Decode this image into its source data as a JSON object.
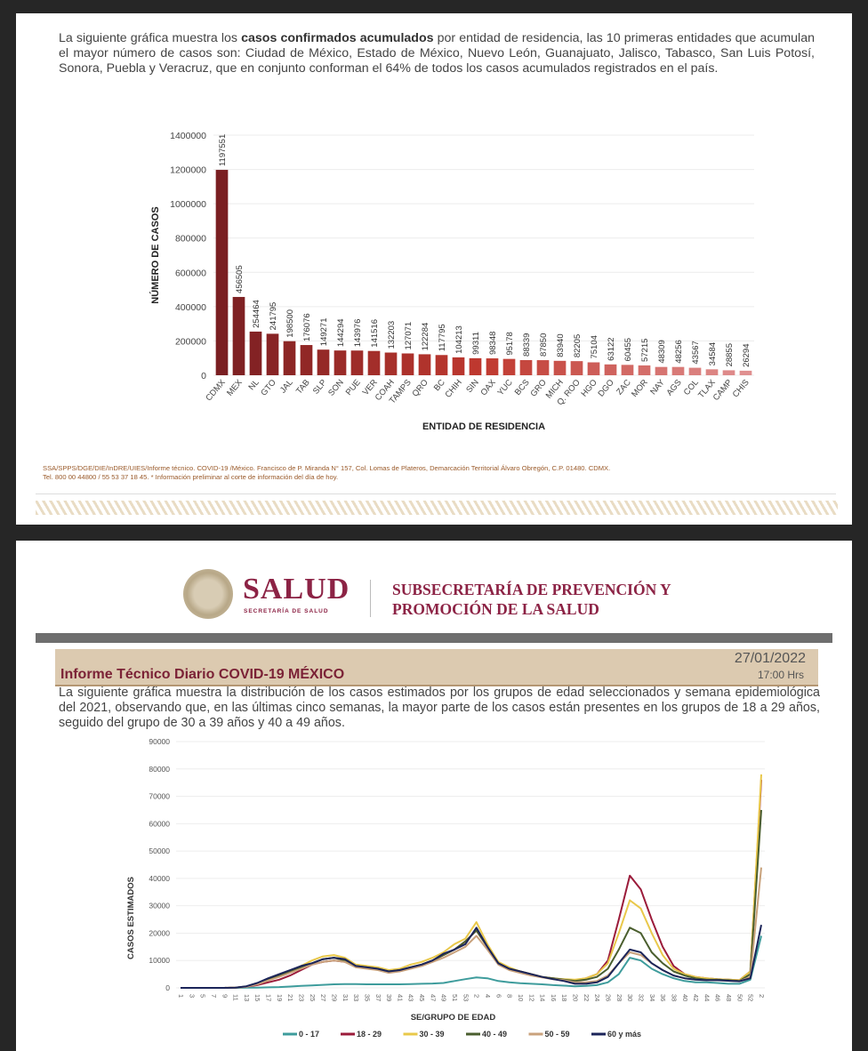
{
  "panel1": {
    "paragraph_before": "La siguiente gráfica muestra los ",
    "paragraph_bold": "casos confirmados acumulados",
    "paragraph_after": " por entidad de residencia, las 10 primeras entidades que acumulan el mayor número de casos son: Ciudad de México, Estado de México, Nuevo León, Guanajuato, Jalisco, Tabasco, San Luis Potosí, Sonora, Puebla y Veracruz, que en conjunto conforman el 64% de todos los casos acumulados registrados en el país.",
    "footer_line1": "SSA/SPPS/DGE/DIE/InDRE/UIES/Informe técnico. COVID-19 /México. Francisco de P. Miranda N° 157, Col. Lomas de Plateros, Demarcación Territorial Álvaro Obregón, C.P. 01480. CDMX.",
    "footer_line2": "Tel. 800 00 44800 / 55 53 37 18 45. * Información preliminar al corte de información del día de hoy."
  },
  "panel2": {
    "brand": "SALUD",
    "brand_sub": "SECRETARÍA DE SALUD",
    "subsecretaria_line1": "SUBSECRETARÍA DE PREVENCIÓN Y",
    "subsecretaria_line2": "PROMOCIÓN DE LA SALUD",
    "report_title": "Informe Técnico Diario COVID-19 MÉXICO",
    "date": "27/01/2022",
    "time": "17:00 Hrs",
    "paragraph": "La siguiente gráfica muestra la distribución de los casos estimados por los grupos de edad seleccionados y semana epidemiológica del 2021, observando que, en las últimas cinco semanas, la mayor parte de los casos están presentes en los grupos de 18 a 29 años, seguido del grupo de 30 a 39 años y 40 a 49 años."
  },
  "chart_data": [
    {
      "type": "bar",
      "xlabel": "ENTIDAD DE RESIDENCIA",
      "ylabel": "NÚMERO DE CASOS",
      "ylim": [
        0,
        1400000
      ],
      "yticks": [
        0,
        200000,
        400000,
        600000,
        800000,
        1000000,
        1200000,
        1400000
      ],
      "grid": true,
      "colors": {
        "dark": "#7a1f22",
        "mid": "#c0392f",
        "light": "#e09090"
      },
      "categories": [
        "CDMX",
        "MEX",
        "NL",
        "GTO",
        "JAL",
        "TAB",
        "SLP",
        "SON",
        "PUE",
        "VER",
        "COAH",
        "TAMPS",
        "QRO",
        "BC",
        "CHIH",
        "SIN",
        "OAX",
        "YUC",
        "BCS",
        "GRO",
        "MICH",
        "Q. ROO",
        "HGO",
        "DGO",
        "ZAC",
        "MOR",
        "NAY",
        "AGS",
        "COL",
        "TLAX",
        "CAMP",
        "CHIS"
      ],
      "values": [
        1197551,
        456505,
        254464,
        241795,
        198500,
        176076,
        149271,
        144294,
        143976,
        141516,
        132203,
        127071,
        122284,
        117795,
        104213,
        99311,
        98348,
        95178,
        88339,
        87850,
        83940,
        82205,
        75104,
        63122,
        60455,
        57215,
        48309,
        48256,
        43567,
        34584,
        28855,
        26294
      ]
    },
    {
      "type": "line",
      "xlabel": "SE/GRUPO DE EDAD",
      "ylabel": "CASOS ESTIMADOS",
      "ylim": [
        0,
        90000
      ],
      "yticks": [
        0,
        10000,
        20000,
        30000,
        40000,
        50000,
        60000,
        70000,
        80000,
        90000
      ],
      "grid": true,
      "legend": "bottom",
      "x": [
        "1",
        "3",
        "5",
        "7",
        "9",
        "11",
        "13",
        "15",
        "17",
        "19",
        "21",
        "23",
        "25",
        "27",
        "29",
        "31",
        "33",
        "35",
        "37",
        "39",
        "41",
        "43",
        "45",
        "47",
        "49",
        "51",
        "53",
        "2",
        "4",
        "6",
        "8",
        "10",
        "12",
        "14",
        "16",
        "18",
        "20",
        "22",
        "24",
        "26",
        "28",
        "30",
        "32",
        "34",
        "36",
        "38",
        "40",
        "42",
        "44",
        "46",
        "48",
        "50",
        "52",
        "2"
      ],
      "series": [
        {
          "name": "0 - 17",
          "color": "#3e9c9c",
          "values": [
            0,
            0,
            0,
            0,
            0,
            0,
            50,
            100,
            200,
            300,
            500,
            700,
            900,
            1100,
            1300,
            1400,
            1400,
            1300,
            1300,
            1300,
            1300,
            1400,
            1500,
            1600,
            1800,
            2500,
            3200,
            3800,
            3500,
            2500,
            2000,
            1700,
            1500,
            1300,
            1000,
            800,
            600,
            700,
            1000,
            2000,
            5000,
            11000,
            10000,
            7000,
            5000,
            3500,
            2500,
            2000,
            2000,
            1800,
            1500,
            1500,
            3000,
            19000
          ]
        },
        {
          "name": "18 - 29",
          "color": "#9b1b3a",
          "values": [
            0,
            0,
            0,
            0,
            0,
            100,
            400,
            1000,
            2000,
            3000,
            4500,
            6500,
            8500,
            9500,
            10000,
            9500,
            8000,
            7500,
            7000,
            6000,
            6500,
            7500,
            8500,
            10000,
            12000,
            14000,
            17000,
            21000,
            15000,
            9000,
            7000,
            6000,
            5000,
            4000,
            3500,
            3000,
            2800,
            3500,
            5000,
            10000,
            25000,
            41000,
            36000,
            25000,
            15000,
            8000,
            5000,
            4000,
            3500,
            3200,
            3000,
            2800,
            6000,
            76000
          ]
        },
        {
          "name": "30 - 39",
          "color": "#e9c84a",
          "values": [
            0,
            0,
            0,
            0,
            0,
            100,
            500,
            1500,
            3000,
            4500,
            6000,
            8000,
            10000,
            11500,
            12000,
            11000,
            8500,
            8000,
            7500,
            6500,
            7000,
            8500,
            9500,
            11000,
            13000,
            16000,
            18000,
            24000,
            16000,
            9500,
            7500,
            6000,
            5000,
            4000,
            3500,
            3200,
            3000,
            3500,
            5000,
            9000,
            20000,
            32000,
            29000,
            20000,
            12000,
            7000,
            5000,
            4000,
            3500,
            3200,
            3000,
            2800,
            6000,
            78000
          ]
        },
        {
          "name": "40 - 49",
          "color": "#4a5e2e",
          "values": [
            0,
            0,
            0,
            0,
            0,
            100,
            500,
            1500,
            3000,
            4500,
            6000,
            7500,
            9000,
            10500,
            11000,
            10000,
            8000,
            7500,
            7000,
            6000,
            6500,
            7500,
            8500,
            10000,
            12000,
            14000,
            17000,
            21000,
            15000,
            9000,
            7000,
            6000,
            5000,
            4000,
            3500,
            3000,
            2500,
            3000,
            4000,
            7000,
            14000,
            22000,
            20000,
            13000,
            9000,
            6000,
            4500,
            3500,
            3000,
            3000,
            2800,
            2500,
            5000,
            65000
          ]
        },
        {
          "name": "50 - 59",
          "color": "#c9a27c",
          "values": [
            0,
            0,
            0,
            0,
            0,
            100,
            400,
            1300,
            2700,
            4000,
            5500,
            7000,
            8500,
            9500,
            10000,
            9500,
            7500,
            7000,
            6500,
            5500,
            6000,
            7000,
            8000,
            9500,
            11000,
            13000,
            15000,
            19000,
            14000,
            8500,
            6500,
            5500,
            4500,
            3800,
            3200,
            2800,
            2000,
            2000,
            2500,
            4500,
            9000,
            13000,
            12000,
            9000,
            6500,
            4500,
            3500,
            3000,
            2800,
            2800,
            2600,
            2400,
            4000,
            44000
          ]
        },
        {
          "name": "60 y más",
          "color": "#1b2459",
          "values": [
            0,
            0,
            0,
            0,
            0,
            100,
            600,
            1800,
            3500,
            5000,
            6500,
            8000,
            9000,
            10500,
            11000,
            10500,
            8000,
            7500,
            7000,
            6000,
            6500,
            7500,
            8500,
            10000,
            12500,
            14000,
            16000,
            22000,
            15000,
            9000,
            7000,
            6000,
            5000,
            4000,
            3200,
            2500,
            1500,
            1500,
            2000,
            4000,
            9000,
            14000,
            13000,
            9000,
            6500,
            4500,
            3500,
            3000,
            2800,
            2800,
            2600,
            2400,
            3500,
            23000
          ]
        }
      ]
    }
  ]
}
